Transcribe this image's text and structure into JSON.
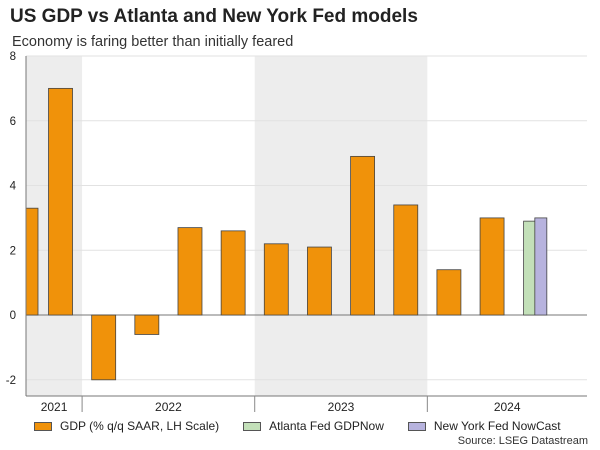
{
  "header": {
    "title": "US GDP vs Atlanta and New York Fed models",
    "subtitle": "Economy is faring better than initially feared"
  },
  "chart_data": {
    "type": "bar",
    "title": "US GDP vs Atlanta and New York Fed models",
    "subtitle": "Economy is faring better than initially feared",
    "ylim": [
      -2.5,
      8
    ],
    "yticks": [
      -2,
      0,
      2,
      4,
      6,
      8
    ],
    "grid": true,
    "legend_placement": "bottom",
    "year_labels": [
      "2021",
      "2022",
      "2023",
      "2024"
    ],
    "year_ranges": [
      [
        -0.5,
        0.8
      ],
      [
        0.8,
        4.8
      ],
      [
        4.8,
        8.8
      ],
      [
        8.8,
        12.5
      ]
    ],
    "shaded_years": [
      "2021",
      "2023"
    ],
    "x_range": [
      -0.5,
      12.5
    ],
    "series": [
      {
        "name": "GDP (% q/q SAAR, LH Scale)",
        "color": "#f0920a",
        "points": [
          {
            "x": -0.5,
            "y": 3.3
          },
          {
            "x": 0.3,
            "y": 7.0
          },
          {
            "x": 1.3,
            "y": -2.0
          },
          {
            "x": 2.3,
            "y": -0.6
          },
          {
            "x": 3.3,
            "y": 2.7
          },
          {
            "x": 4.3,
            "y": 2.6
          },
          {
            "x": 5.3,
            "y": 2.2
          },
          {
            "x": 6.3,
            "y": 2.1
          },
          {
            "x": 7.3,
            "y": 4.9
          },
          {
            "x": 8.3,
            "y": 3.4
          },
          {
            "x": 9.3,
            "y": 1.4
          },
          {
            "x": 10.3,
            "y": 3.0
          }
        ]
      },
      {
        "name": "Atlanta Fed GDPNow",
        "color": "#c3e0b9",
        "points": [
          {
            "x": 11.17,
            "y": 2.9
          }
        ]
      },
      {
        "name": "New York Fed NowCast",
        "color": "#b7b3de",
        "points": [
          {
            "x": 11.43,
            "y": 3.0
          }
        ]
      }
    ]
  },
  "footer": {
    "source": "Source: LSEG Datastream"
  }
}
